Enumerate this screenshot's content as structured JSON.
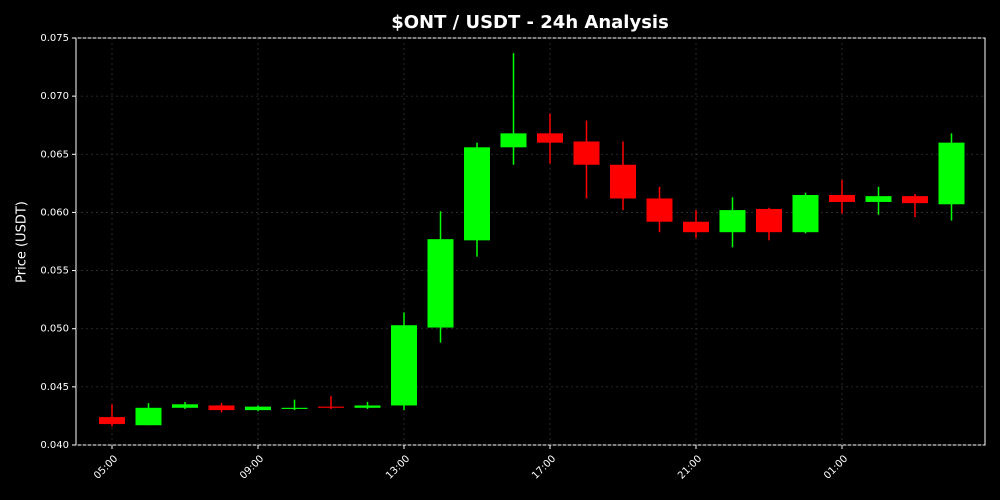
{
  "chart_data": {
    "type": "candlestick",
    "title": "$ONT / USDT - 24h Analysis",
    "y_label": "Price (USDT)",
    "categories": [
      "05:00",
      null,
      null,
      null,
      "09:00",
      null,
      null,
      null,
      "13:00",
      null,
      null,
      null,
      "17:00",
      null,
      null,
      null,
      "21:00",
      null,
      null,
      null,
      "01:00",
      null,
      null,
      null
    ],
    "open": [
      0.0424,
      0.0417,
      0.0432,
      0.0434,
      0.043,
      0.0431,
      0.0433,
      0.0432,
      0.0434,
      0.0501,
      0.0576,
      0.0656,
      0.0668,
      0.0661,
      0.0641,
      0.0612,
      0.0592,
      0.0583,
      0.0603,
      0.0583,
      0.0615,
      0.0609,
      0.0614,
      0.0607
    ],
    "high": [
      0.0435,
      0.0436,
      0.0437,
      0.0436,
      0.0434,
      0.0439,
      0.0442,
      0.0437,
      0.0514,
      0.0601,
      0.066,
      0.0737,
      0.0685,
      0.0679,
      0.0661,
      0.0622,
      0.0602,
      0.0613,
      0.0604,
      0.0617,
      0.0628,
      0.0622,
      0.0616,
      0.0668
    ],
    "low": [
      0.0416,
      0.0417,
      0.0431,
      0.0428,
      0.0429,
      0.043,
      0.0431,
      0.0431,
      0.043,
      0.0488,
      0.0562,
      0.0641,
      0.0642,
      0.0612,
      0.0602,
      0.0583,
      0.0578,
      0.057,
      0.0576,
      0.0582,
      0.0599,
      0.0598,
      0.0596,
      0.0593
    ],
    "close": [
      0.0418,
      0.0432,
      0.0435,
      0.043,
      0.0433,
      0.0432,
      0.0432,
      0.0434,
      0.0503,
      0.0577,
      0.0656,
      0.0668,
      0.066,
      0.0641,
      0.0612,
      0.0592,
      0.0583,
      0.0602,
      0.0583,
      0.0615,
      0.0609,
      0.0614,
      0.0608,
      0.066
    ],
    "up_color": "#00ff00",
    "down_color": "#ff0000",
    "ylim": [
      0.04,
      0.075
    ],
    "yticks": [
      {
        "value": 0.04,
        "label": "0.040"
      },
      {
        "value": 0.045,
        "label": "0.045"
      },
      {
        "value": 0.05,
        "label": "0.050"
      },
      {
        "value": 0.055,
        "label": "0.055"
      },
      {
        "value": 0.06,
        "label": "0.060"
      },
      {
        "value": 0.065,
        "label": "0.065"
      },
      {
        "value": 0.07,
        "label": "0.070"
      },
      {
        "value": 0.075,
        "label": "0.075"
      }
    ],
    "grid": true
  }
}
